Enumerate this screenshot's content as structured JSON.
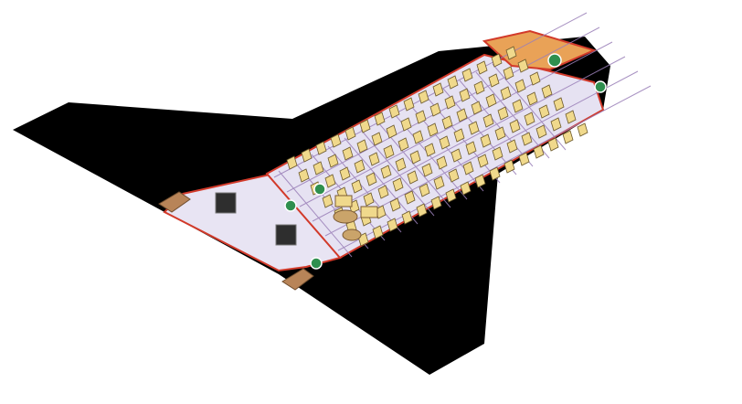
{
  "scene": {
    "subject": "isometric-spacecraft-cutaway",
    "background_color": "#ffffff"
  },
  "ship": {
    "hull_color": "#000000",
    "floor_color": "#e6e2f2",
    "grid_color": "#9a7fb8",
    "wall_color": "#d23a2a",
    "cockpit_floor_color": "#e9a257",
    "engine_color": "#b88458"
  },
  "rooms": [
    {
      "id": "cockpit",
      "icon": "cockpit-icon"
    },
    {
      "id": "passenger-cabin",
      "icon": "seat-icon"
    },
    {
      "id": "lounge",
      "icon": "table-icon"
    },
    {
      "id": "cargo-bay",
      "icon": "crate-icon"
    }
  ],
  "seating": {
    "rows": 16,
    "seats_per_row": 7,
    "seat_color": "#f0d98c"
  },
  "cargo": {
    "crates": 2,
    "crate_color": "#2e2e2e"
  },
  "doors": {
    "count": 5,
    "icon": "door-icon",
    "color": "#2f8f4e"
  },
  "engines": {
    "count": 2,
    "icon": "thruster-icon"
  }
}
